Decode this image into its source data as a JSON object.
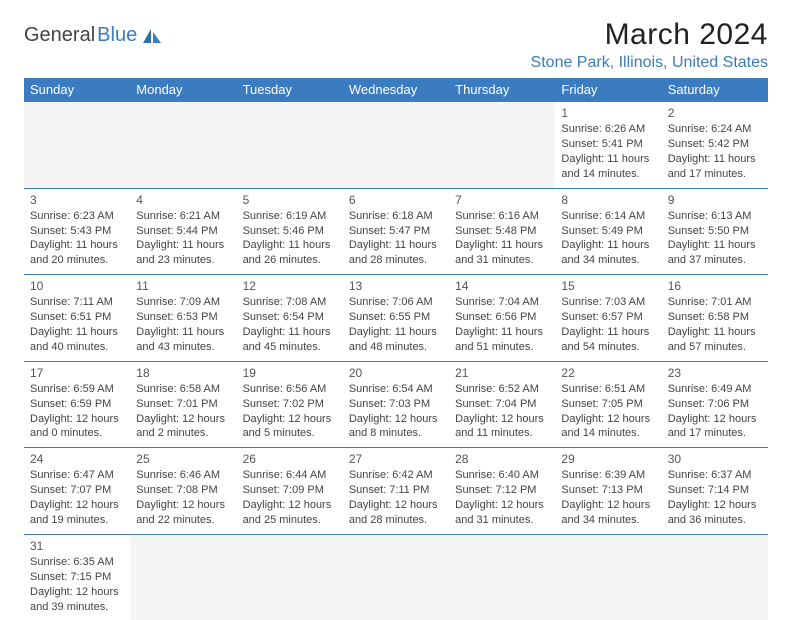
{
  "brand": {
    "part1": "General",
    "part2": "Blue"
  },
  "title": "March 2024",
  "location": "Stone Park, Illinois, United States",
  "colors": {
    "header_bg": "#3b7bbf",
    "header_text": "#ffffff",
    "cell_border": "#3b7bbf",
    "text": "#444444",
    "title_text": "#222222",
    "location_text": "#3b7bbf",
    "empty_bg": "#f5f5f5"
  },
  "weekdays": [
    "Sunday",
    "Monday",
    "Tuesday",
    "Wednesday",
    "Thursday",
    "Friday",
    "Saturday"
  ],
  "days": {
    "1": {
      "sunrise": "6:26 AM",
      "sunset": "5:41 PM",
      "daylight": "11 hours and 14 minutes."
    },
    "2": {
      "sunrise": "6:24 AM",
      "sunset": "5:42 PM",
      "daylight": "11 hours and 17 minutes."
    },
    "3": {
      "sunrise": "6:23 AM",
      "sunset": "5:43 PM",
      "daylight": "11 hours and 20 minutes."
    },
    "4": {
      "sunrise": "6:21 AM",
      "sunset": "5:44 PM",
      "daylight": "11 hours and 23 minutes."
    },
    "5": {
      "sunrise": "6:19 AM",
      "sunset": "5:46 PM",
      "daylight": "11 hours and 26 minutes."
    },
    "6": {
      "sunrise": "6:18 AM",
      "sunset": "5:47 PM",
      "daylight": "11 hours and 28 minutes."
    },
    "7": {
      "sunrise": "6:16 AM",
      "sunset": "5:48 PM",
      "daylight": "11 hours and 31 minutes."
    },
    "8": {
      "sunrise": "6:14 AM",
      "sunset": "5:49 PM",
      "daylight": "11 hours and 34 minutes."
    },
    "9": {
      "sunrise": "6:13 AM",
      "sunset": "5:50 PM",
      "daylight": "11 hours and 37 minutes."
    },
    "10": {
      "sunrise": "7:11 AM",
      "sunset": "6:51 PM",
      "daylight": "11 hours and 40 minutes."
    },
    "11": {
      "sunrise": "7:09 AM",
      "sunset": "6:53 PM",
      "daylight": "11 hours and 43 minutes."
    },
    "12": {
      "sunrise": "7:08 AM",
      "sunset": "6:54 PM",
      "daylight": "11 hours and 45 minutes."
    },
    "13": {
      "sunrise": "7:06 AM",
      "sunset": "6:55 PM",
      "daylight": "11 hours and 48 minutes."
    },
    "14": {
      "sunrise": "7:04 AM",
      "sunset": "6:56 PM",
      "daylight": "11 hours and 51 minutes."
    },
    "15": {
      "sunrise": "7:03 AM",
      "sunset": "6:57 PM",
      "daylight": "11 hours and 54 minutes."
    },
    "16": {
      "sunrise": "7:01 AM",
      "sunset": "6:58 PM",
      "daylight": "11 hours and 57 minutes."
    },
    "17": {
      "sunrise": "6:59 AM",
      "sunset": "6:59 PM",
      "daylight": "12 hours and 0 minutes."
    },
    "18": {
      "sunrise": "6:58 AM",
      "sunset": "7:01 PM",
      "daylight": "12 hours and 2 minutes."
    },
    "19": {
      "sunrise": "6:56 AM",
      "sunset": "7:02 PM",
      "daylight": "12 hours and 5 minutes."
    },
    "20": {
      "sunrise": "6:54 AM",
      "sunset": "7:03 PM",
      "daylight": "12 hours and 8 minutes."
    },
    "21": {
      "sunrise": "6:52 AM",
      "sunset": "7:04 PM",
      "daylight": "12 hours and 11 minutes."
    },
    "22": {
      "sunrise": "6:51 AM",
      "sunset": "7:05 PM",
      "daylight": "12 hours and 14 minutes."
    },
    "23": {
      "sunrise": "6:49 AM",
      "sunset": "7:06 PM",
      "daylight": "12 hours and 17 minutes."
    },
    "24": {
      "sunrise": "6:47 AM",
      "sunset": "7:07 PM",
      "daylight": "12 hours and 19 minutes."
    },
    "25": {
      "sunrise": "6:46 AM",
      "sunset": "7:08 PM",
      "daylight": "12 hours and 22 minutes."
    },
    "26": {
      "sunrise": "6:44 AM",
      "sunset": "7:09 PM",
      "daylight": "12 hours and 25 minutes."
    },
    "27": {
      "sunrise": "6:42 AM",
      "sunset": "7:11 PM",
      "daylight": "12 hours and 28 minutes."
    },
    "28": {
      "sunrise": "6:40 AM",
      "sunset": "7:12 PM",
      "daylight": "12 hours and 31 minutes."
    },
    "29": {
      "sunrise": "6:39 AM",
      "sunset": "7:13 PM",
      "daylight": "12 hours and 34 minutes."
    },
    "30": {
      "sunrise": "6:37 AM",
      "sunset": "7:14 PM",
      "daylight": "12 hours and 36 minutes."
    },
    "31": {
      "sunrise": "6:35 AM",
      "sunset": "7:15 PM",
      "daylight": "12 hours and 39 minutes."
    }
  },
  "grid": [
    [
      null,
      null,
      null,
      null,
      null,
      "1",
      "2"
    ],
    [
      "3",
      "4",
      "5",
      "6",
      "7",
      "8",
      "9"
    ],
    [
      "10",
      "11",
      "12",
      "13",
      "14",
      "15",
      "16"
    ],
    [
      "17",
      "18",
      "19",
      "20",
      "21",
      "22",
      "23"
    ],
    [
      "24",
      "25",
      "26",
      "27",
      "28",
      "29",
      "30"
    ],
    [
      "31",
      null,
      null,
      null,
      null,
      null,
      null
    ]
  ],
  "labels": {
    "sunrise": "Sunrise:",
    "sunset": "Sunset:",
    "daylight": "Daylight:"
  }
}
